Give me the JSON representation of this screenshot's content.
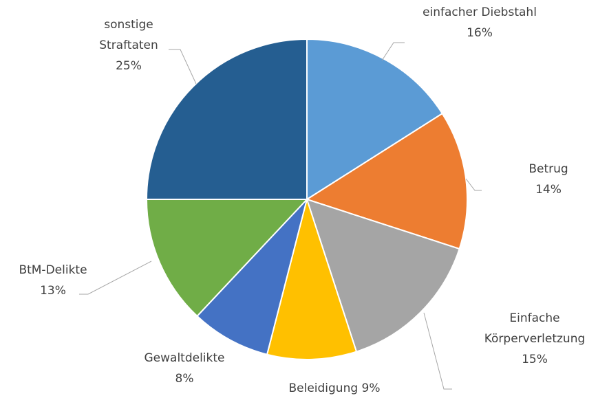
{
  "chart_data": {
    "type": "pie",
    "categories": [
      "einfacher Diebstahl",
      "Betrug",
      "Einfache Körperverletzung",
      "Beleidigung",
      "Gewaltdelikte",
      "BtM-Delikte",
      "sonstige Straftaten"
    ],
    "values": [
      16,
      14,
      15,
      9,
      8,
      13,
      25
    ],
    "value_labels": [
      "16%",
      "14%",
      "15%",
      "9%",
      "8%",
      "13%",
      "25%"
    ],
    "colors": [
      "#5b9bd5",
      "#ed7d31",
      "#a5a5a5",
      "#ffc000",
      "#4472c4",
      "#70ad47",
      "#255e91"
    ]
  }
}
